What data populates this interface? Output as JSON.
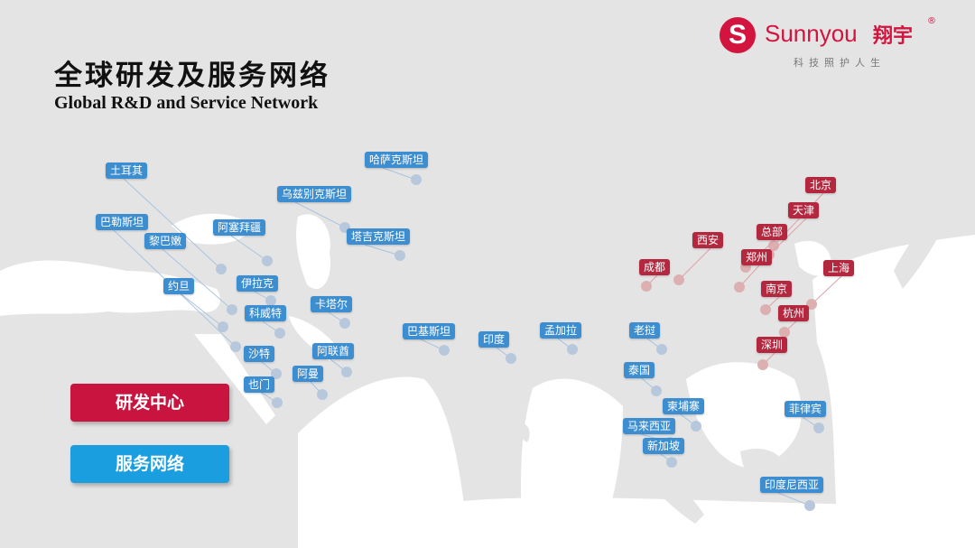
{
  "header": {
    "title": "全球研发及服务网络",
    "subtitle": "Global R&D and Service Network"
  },
  "logo": {
    "brand": "Sunnyou",
    "brand_cn": "翔宇",
    "registered": "®",
    "slogan": "科技照护人生"
  },
  "legend": {
    "rd_center": "研发中心",
    "service_network": "服务网络"
  },
  "colors": {
    "rd_center": "#c8143f",
    "service_network": "#1a9ee0",
    "rd_label": "#b3273f",
    "service_label": "#3d8ed0",
    "brand": "#d2143f"
  },
  "locations": [
    {
      "name": "土耳其",
      "type": "service"
    },
    {
      "name": "巴勒斯坦",
      "type": "service"
    },
    {
      "name": "黎巴嫩",
      "type": "service"
    },
    {
      "name": "约旦",
      "type": "service"
    },
    {
      "name": "阿塞拜疆",
      "type": "service"
    },
    {
      "name": "伊拉克",
      "type": "service"
    },
    {
      "name": "科威特",
      "type": "service"
    },
    {
      "name": "沙特",
      "type": "service"
    },
    {
      "name": "也门",
      "type": "service"
    },
    {
      "name": "阿曼",
      "type": "service"
    },
    {
      "name": "卡塔尔",
      "type": "service"
    },
    {
      "name": "阿联酋",
      "type": "service"
    },
    {
      "name": "乌兹别克斯坦",
      "type": "service"
    },
    {
      "name": "塔吉克斯坦",
      "type": "service"
    },
    {
      "name": "哈萨克斯坦",
      "type": "service"
    },
    {
      "name": "巴基斯坦",
      "type": "service"
    },
    {
      "name": "印度",
      "type": "service"
    },
    {
      "name": "孟加拉",
      "type": "service"
    },
    {
      "name": "老挝",
      "type": "service"
    },
    {
      "name": "泰国",
      "type": "service"
    },
    {
      "name": "柬埔寨",
      "type": "service"
    },
    {
      "name": "马来西亚",
      "type": "service"
    },
    {
      "name": "新加坡",
      "type": "service"
    },
    {
      "name": "菲律宾",
      "type": "service"
    },
    {
      "name": "印度尼西亚",
      "type": "service"
    },
    {
      "name": "北京",
      "type": "rd"
    },
    {
      "name": "天津",
      "type": "rd"
    },
    {
      "name": "总部",
      "type": "rd"
    },
    {
      "name": "郑州",
      "type": "rd"
    },
    {
      "name": "西安",
      "type": "rd"
    },
    {
      "name": "成都",
      "type": "rd"
    },
    {
      "name": "南京",
      "type": "rd"
    },
    {
      "name": "杭州",
      "type": "rd"
    },
    {
      "name": "上海",
      "type": "rd"
    },
    {
      "name": "深圳",
      "type": "rd"
    }
  ]
}
